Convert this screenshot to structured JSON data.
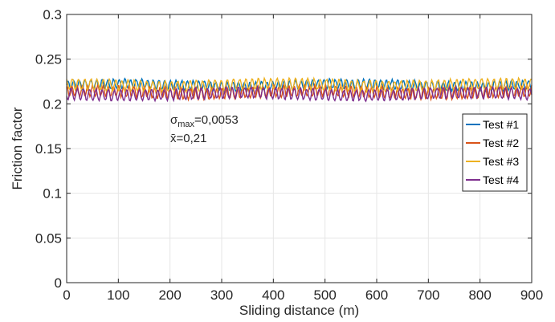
{
  "chart_data": {
    "type": "line",
    "xlabel": "Sliding distance (m)",
    "ylabel": "Friction factor",
    "xlim": [
      0,
      900
    ],
    "ylim": [
      0,
      0.3
    ],
    "xticks": [
      0,
      100,
      200,
      300,
      400,
      500,
      600,
      700,
      800,
      900
    ],
    "yticks": [
      0,
      0.05,
      0.1,
      0.15,
      0.2,
      0.25,
      0.3
    ],
    "xtick_labels": [
      "0",
      "100",
      "200",
      "300",
      "400",
      "500",
      "600",
      "700",
      "800",
      "900"
    ],
    "ytick_labels": [
      "0",
      "0.05",
      "0.1",
      "0.15",
      "0.2",
      "0.25",
      "0.3"
    ],
    "grid": true,
    "legend_position": "right",
    "annotation": {
      "sigma_symbol": "σ",
      "sigma_sub": "max",
      "sigma_value": "=0,0053",
      "mean_line": "x̄=0,21"
    },
    "series": [
      {
        "name": "Test #1",
        "color": "#0072BD",
        "mean": 0.221,
        "amplitude": 0.005,
        "period": 11,
        "phase": 0.0
      },
      {
        "name": "Test #2",
        "color": "#D95319",
        "mean": 0.213,
        "amplitude": 0.006,
        "period": 10,
        "phase": 1.3
      },
      {
        "name": "Test #3",
        "color": "#EDB120",
        "mean": 0.221,
        "amplitude": 0.006,
        "period": 12,
        "phase": 2.1
      },
      {
        "name": "Test #4",
        "color": "#7E2F8E",
        "mean": 0.211,
        "amplitude": 0.006,
        "period": 12,
        "phase": 3.4
      }
    ]
  }
}
